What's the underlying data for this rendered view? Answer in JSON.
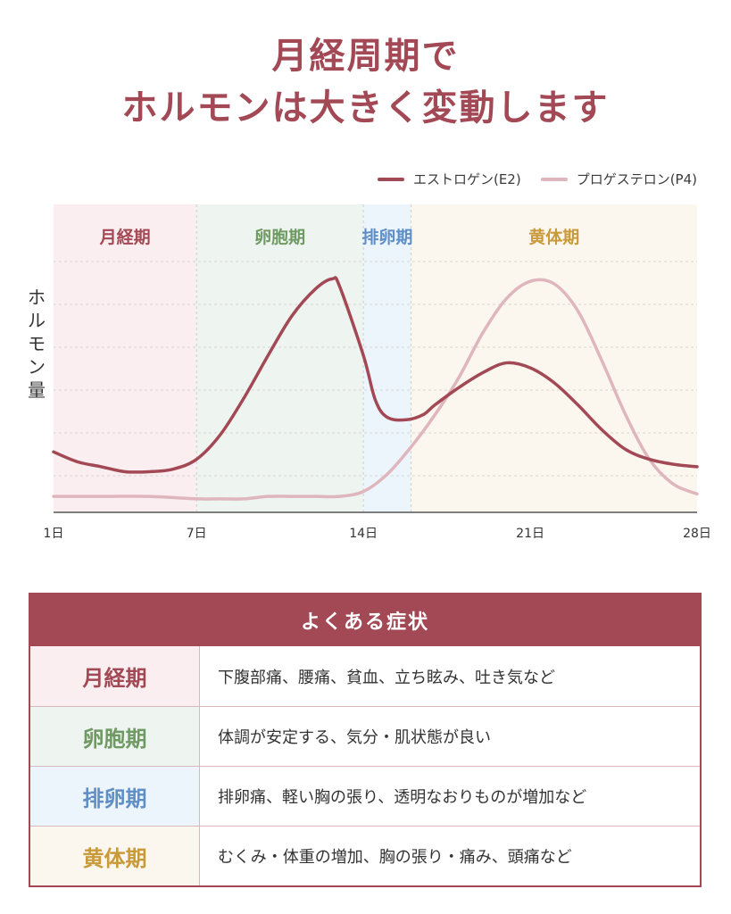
{
  "title": [
    "月経周期で",
    "ホルモンは大きく変動します"
  ],
  "legend": [
    {
      "label": "エストロゲン(E2)",
      "color": "#a24955"
    },
    {
      "label": "プロゲステロン(P4)",
      "color": "#dfb6bd"
    }
  ],
  "ylabel": "ホルモン量",
  "phases": [
    {
      "name": "月経期",
      "start": 1,
      "end": 7,
      "bg": "#fbeef0",
      "color": "#a24955"
    },
    {
      "name": "卵胞期",
      "start": 7,
      "end": 14,
      "bg": "#eef4ef",
      "color": "#6f9a64"
    },
    {
      "name": "排卵期",
      "start": 14,
      "end": 16,
      "bg": "#edf5fc",
      "color": "#5f8fc6"
    },
    {
      "name": "黄体期",
      "start": 16,
      "end": 28,
      "bg": "#fcf7ee",
      "color": "#c99a3a"
    }
  ],
  "chart_data": {
    "type": "line",
    "xlabel": "",
    "ylabel": "ホルモン量",
    "xlim": [
      1,
      28
    ],
    "ylim": [
      0,
      100
    ],
    "x_ticks": [
      {
        "value": 1,
        "label": "1日"
      },
      {
        "value": 7,
        "label": "7日"
      },
      {
        "value": 14,
        "label": "14日"
      },
      {
        "value": 21,
        "label": "21日"
      },
      {
        "value": 28,
        "label": "28日"
      }
    ],
    "grid": true,
    "legend_position": "top-right",
    "series": [
      {
        "name": "エストロゲン(E2)",
        "color": "#a24955",
        "x": [
          1,
          2,
          3,
          4,
          5,
          6,
          7,
          8,
          9,
          10,
          11,
          12,
          12.7,
          13,
          14,
          14.5,
          15,
          15.8,
          16.5,
          17,
          18,
          19,
          20,
          21,
          22,
          23,
          24,
          25,
          26,
          27,
          28
        ],
        "y": [
          23,
          19,
          17,
          15,
          15,
          16,
          20,
          30,
          45,
          62,
          78,
          89,
          93,
          90,
          62,
          44,
          37,
          36,
          38,
          42,
          49,
          55,
          59,
          57,
          51,
          42,
          32,
          24,
          20,
          18,
          17
        ]
      },
      {
        "name": "プロゲステロン(P4)",
        "color": "#dfb6bd",
        "x": [
          1,
          3,
          5,
          7,
          8,
          9,
          10,
          11,
          12,
          13,
          14,
          15,
          16,
          17,
          18,
          19,
          20,
          21,
          22,
          23,
          24,
          25,
          26,
          27,
          28
        ],
        "y": [
          5,
          5,
          5,
          4,
          4,
          4,
          5,
          5,
          5,
          5,
          7,
          14,
          25,
          38,
          53,
          71,
          85,
          92,
          91,
          80,
          60,
          38,
          20,
          10,
          6
        ]
      }
    ]
  },
  "table": {
    "title": "よくある症状",
    "rows": [
      {
        "phase": "月経期",
        "text": "下腹部痛、腰痛、貧血、立ち眩み、吐き気など",
        "bg": "#fbeef0",
        "color": "#a24955"
      },
      {
        "phase": "卵胞期",
        "text": "体調が安定する、気分・肌状態が良い",
        "bg": "#eef4ef",
        "color": "#6f9a64"
      },
      {
        "phase": "排卵期",
        "text": "排卵痛、軽い胸の張り、透明なおりものが増加など",
        "bg": "#edf5fc",
        "color": "#5f8fc6"
      },
      {
        "phase": "黄体期",
        "text": "むくみ・体重の増加、胸の張り・痛み、頭痛など",
        "bg": "#fcf7ee",
        "color": "#c99a3a"
      }
    ]
  }
}
